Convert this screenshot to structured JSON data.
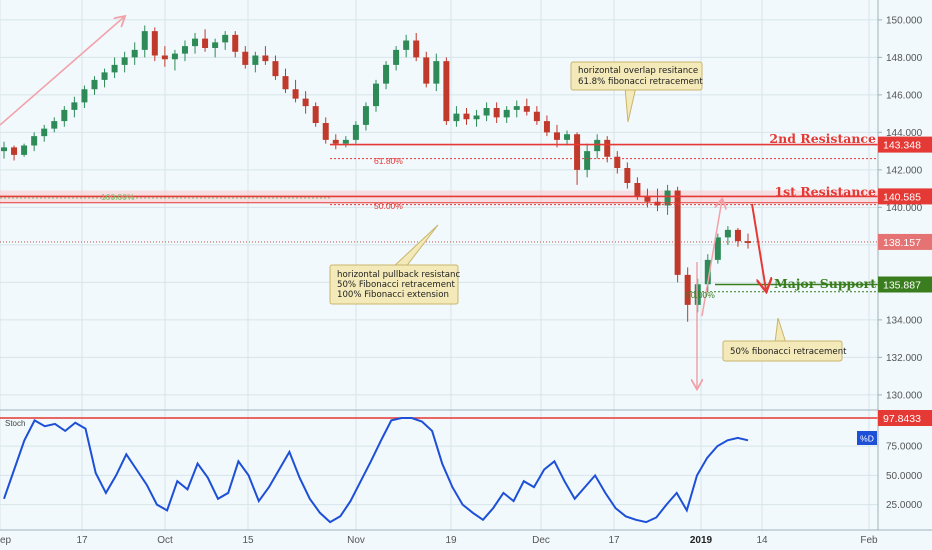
{
  "colors": {
    "background": "#f1f9fc",
    "grid": "#d6e4ea",
    "candle_up": "#2e8b57",
    "candle_down": "#c0392b",
    "resistance": "#e53935",
    "support": "#3a7d1e",
    "stoch": "#1d4fd7",
    "arrow_pink": "#f2a1a8",
    "callout_bg": "#f3e9b9",
    "callout_border": "#c9b56a"
  },
  "chart_data": [
    {
      "type": "candlestick",
      "ylim": [
        129.3,
        150.9
      ],
      "y_ticks": [
        "150.000",
        "148.000",
        "146.000",
        "144.000",
        "142.000",
        "140.000",
        "138.000",
        "136.000",
        "134.000",
        "132.000",
        "130.000"
      ],
      "x_ticks": [
        "ep",
        "17",
        "Oct",
        "15",
        "Nov",
        "19",
        "Dec",
        "17",
        "2019",
        "14",
        "Feb"
      ],
      "series": [
        {
          "values": [
            [
              143.0,
              143.5,
              142.6,
              143.2
            ],
            [
              143.2,
              143.3,
              142.5,
              142.8
            ],
            [
              142.8,
              143.4,
              142.7,
              143.3
            ],
            [
              143.3,
              144.0,
              143.0,
              143.8
            ],
            [
              143.8,
              144.4,
              143.5,
              144.2
            ],
            [
              144.2,
              144.8,
              144.0,
              144.6
            ],
            [
              144.6,
              145.4,
              144.3,
              145.2
            ],
            [
              145.2,
              145.9,
              144.8,
              145.6
            ],
            [
              145.6,
              146.5,
              145.3,
              146.3
            ],
            [
              146.3,
              147.0,
              146.0,
              146.8
            ],
            [
              146.8,
              147.4,
              146.4,
              147.2
            ],
            [
              147.2,
              148.0,
              146.9,
              147.6
            ],
            [
              147.6,
              148.3,
              147.2,
              148.0
            ],
            [
              148.0,
              148.8,
              147.6,
              148.4
            ],
            [
              148.4,
              149.7,
              148.0,
              149.4
            ],
            [
              149.4,
              149.6,
              147.8,
              148.1
            ],
            [
              148.1,
              148.6,
              147.5,
              147.9
            ],
            [
              147.9,
              148.4,
              147.3,
              148.2
            ],
            [
              148.2,
              148.9,
              147.8,
              148.6
            ],
            [
              148.6,
              149.3,
              148.2,
              149.0
            ],
            [
              149.0,
              149.5,
              148.3,
              148.5
            ],
            [
              148.5,
              149.0,
              148.0,
              148.8
            ],
            [
              148.8,
              149.4,
              148.4,
              149.2
            ],
            [
              149.2,
              149.4,
              148.0,
              148.3
            ],
            [
              148.3,
              148.6,
              147.4,
              147.6
            ],
            [
              147.6,
              148.3,
              147.2,
              148.1
            ],
            [
              148.1,
              148.6,
              147.6,
              147.8
            ],
            [
              147.8,
              148.1,
              146.8,
              147.0
            ],
            [
              147.0,
              147.4,
              146.1,
              146.3
            ],
            [
              146.3,
              146.8,
              145.6,
              145.8
            ],
            [
              145.8,
              146.2,
              145.0,
              145.4
            ],
            [
              145.4,
              145.6,
              144.3,
              144.5
            ],
            [
              144.5,
              144.8,
              143.4,
              143.6
            ],
            [
              143.6,
              143.9,
              143.1,
              143.4
            ],
            [
              143.4,
              143.8,
              143.2,
              143.6
            ],
            [
              143.6,
              144.6,
              143.4,
              144.4
            ],
            [
              144.4,
              145.6,
              144.1,
              145.4
            ],
            [
              145.4,
              146.8,
              145.1,
              146.6
            ],
            [
              146.6,
              147.8,
              146.3,
              147.6
            ],
            [
              147.6,
              148.6,
              147.3,
              148.4
            ],
            [
              148.4,
              149.2,
              148.0,
              148.9
            ],
            [
              148.9,
              149.3,
              147.8,
              148.0
            ],
            [
              148.0,
              148.3,
              146.4,
              146.6
            ],
            [
              146.6,
              148.2,
              146.2,
              147.8
            ],
            [
              147.8,
              148.0,
              144.4,
              144.6
            ],
            [
              144.6,
              145.4,
              144.3,
              145.0
            ],
            [
              145.0,
              145.3,
              144.4,
              144.7
            ],
            [
              144.7,
              145.2,
              144.3,
              144.9
            ],
            [
              144.9,
              145.6,
              144.6,
              145.3
            ],
            [
              145.3,
              145.6,
              144.5,
              144.8
            ],
            [
              144.8,
              145.4,
              144.5,
              145.2
            ],
            [
              145.2,
              145.7,
              144.8,
              145.4
            ],
            [
              145.4,
              145.8,
              144.9,
              145.1
            ],
            [
              145.1,
              145.4,
              144.4,
              144.6
            ],
            [
              144.6,
              144.9,
              143.8,
              144.0
            ],
            [
              144.0,
              144.4,
              143.2,
              143.6
            ],
            [
              143.6,
              144.1,
              143.3,
              143.9
            ],
            [
              143.9,
              144.0,
              141.2,
              142.0
            ],
            [
              142.0,
              143.4,
              141.6,
              143.0
            ],
            [
              143.0,
              143.9,
              142.6,
              143.6
            ],
            [
              143.6,
              143.8,
              142.4,
              142.7
            ],
            [
              142.7,
              143.0,
              141.8,
              142.1
            ],
            [
              142.1,
              142.4,
              141.0,
              141.3
            ],
            [
              141.3,
              141.6,
              140.4,
              140.6
            ],
            [
              140.6,
              141.0,
              140.0,
              140.3
            ],
            [
              140.3,
              141.0,
              139.8,
              140.1
            ],
            [
              140.1,
              141.2,
              139.6,
              140.9
            ],
            [
              140.9,
              141.1,
              136.0,
              136.4
            ],
            [
              136.4,
              136.8,
              133.9,
              134.8
            ],
            [
              134.8,
              136.2,
              134.4,
              135.9
            ],
            [
              135.9,
              137.5,
              135.5,
              137.2
            ],
            [
              137.2,
              138.6,
              137.0,
              138.4
            ],
            [
              138.4,
              139.0,
              138.0,
              138.8
            ],
            [
              138.8,
              138.9,
              137.9,
              138.2
            ],
            [
              138.2,
              138.6,
              137.8,
              138.1
            ]
          ]
        }
      ]
    },
    {
      "type": "line",
      "title": "Stoch",
      "y_ticks": [
        "75.0000",
        "50.0000",
        "25.0000"
      ],
      "ylim": [
        5,
        105
      ],
      "series": [
        {
          "name": "%D",
          "values": [
            30,
            55,
            80,
            97,
            92,
            94,
            88,
            95,
            90,
            52,
            35,
            50,
            68,
            55,
            42,
            25,
            20,
            45,
            38,
            60,
            48,
            30,
            35,
            62,
            50,
            28,
            40,
            55,
            70,
            48,
            30,
            18,
            10,
            15,
            28,
            45,
            62,
            80,
            97,
            99,
            99,
            96,
            88,
            60,
            40,
            25,
            18,
            12,
            22,
            35,
            28,
            45,
            40,
            55,
            62,
            45,
            30,
            40,
            50,
            35,
            22,
            15,
            12,
            10,
            14,
            25,
            35,
            20,
            50,
            65,
            75,
            80,
            82,
            80
          ]
        }
      ]
    }
  ],
  "levels": {
    "stoch_top": {
      "label": "97.8433"
    },
    "resistance2": {
      "value": 143.348,
      "label": "143.348",
      "name": "2nd Resistance"
    },
    "resistance1": {
      "value": 140.585,
      "label": "140.585",
      "name": "1st Resistance"
    },
    "current": {
      "value": 138.157,
      "label": "138.157"
    },
    "support": {
      "value": 135.887,
      "label": "135.887",
      "name": "Major Support"
    }
  },
  "fib_labels": {
    "fib618": "61.80%",
    "fib50": "50.00%",
    "fib100": "100.00%",
    "fib50b": "50.00%"
  },
  "callouts": {
    "c1": [
      "horizontal overlap resitance",
      "61.8% fibonacci retracement"
    ],
    "c2": [
      "horizontal pullback resistanc",
      "50% Fibonacci retracement",
      "100% Fibonacci extension"
    ],
    "c3": [
      "50% fibonacci retracement"
    ]
  },
  "stoch_badge": "%D"
}
